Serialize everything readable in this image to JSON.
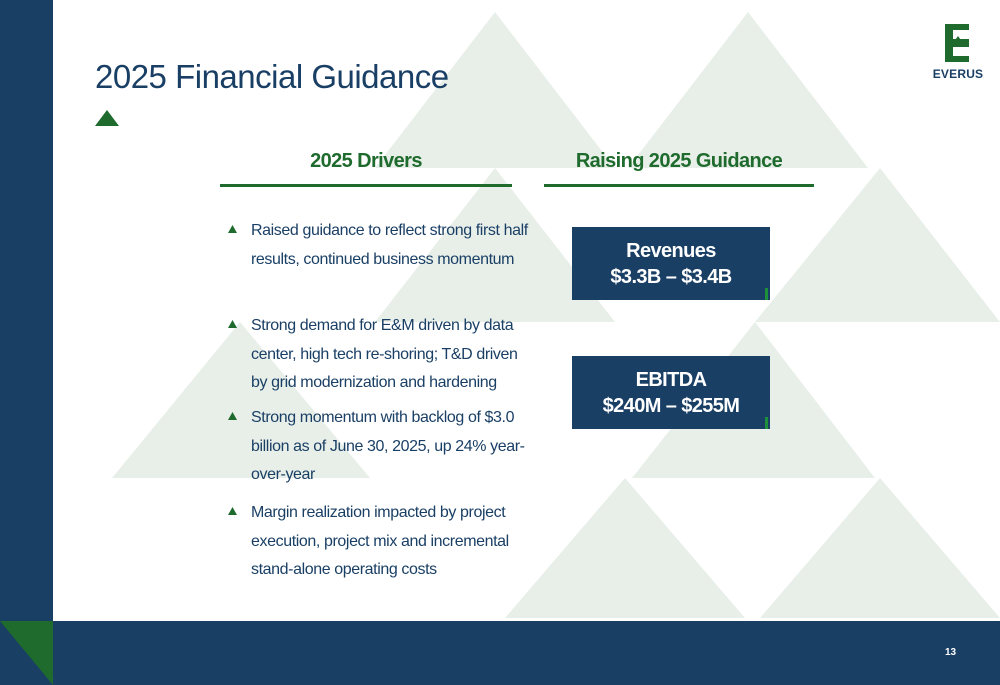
{
  "slide": {
    "title": "2025 Financial Guidance",
    "page_number": "13"
  },
  "logo": {
    "text": "EVERUS"
  },
  "colors": {
    "navy": "#1a3f65",
    "green": "#1e6b2d",
    "accent_green": "#1e8f3a",
    "watermark": "#e8efe9"
  },
  "drivers": {
    "heading": "2025 Drivers",
    "items": [
      "Raised guidance to reflect strong first half results, continued business momentum",
      "Strong demand for E&M driven by data center, high tech re-shoring; T&D driven by grid modernization and hardening",
      "Strong momentum with backlog of $3.0 billion as of June 30, 2025, up 24% year-over-year",
      "Margin realization impacted by project execution, project mix and incremental stand-alone operating costs"
    ]
  },
  "guidance": {
    "heading": "Raising 2025 Guidance",
    "metrics": [
      {
        "label": "Revenues",
        "value": "$3.3B – $3.4B"
      },
      {
        "label": "EBITDA",
        "value": "$240M – $255M"
      }
    ]
  }
}
